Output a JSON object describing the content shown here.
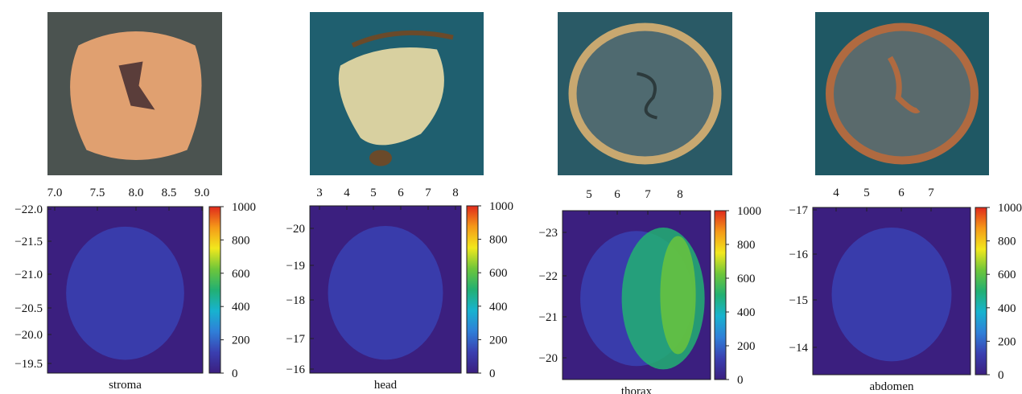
{
  "colormap_colors": [
    "#3b1f7f",
    "#3a3fb0",
    "#2f7fd8",
    "#17b3cf",
    "#22b072",
    "#6ec63a",
    "#f2e81d",
    "#f59a18",
    "#e02a1c"
  ],
  "chart_data": [
    {
      "type": "heatmap",
      "xlabel": "stroma",
      "x_ticks": [
        "7.0",
        "7.5",
        "8.0",
        "8.5",
        "9.0"
      ],
      "y_ticks": [
        "−22.0",
        "−21.5",
        "−21.0",
        "−20.5",
        "−20.0",
        "−19.5"
      ],
      "colorbar_ticks": [
        "1000",
        "800",
        "600",
        "400",
        "200",
        "0"
      ],
      "clim": [
        0,
        1000
      ],
      "background_value": 60,
      "sample_value": 90,
      "photo_colors": {
        "background": "#4b5350",
        "sample": "#e0a070",
        "dark": "#5a3d3a"
      }
    },
    {
      "type": "heatmap",
      "xlabel": "head",
      "x_ticks": [
        "3",
        "4",
        "5",
        "6",
        "7",
        "8"
      ],
      "y_ticks": [
        "−20",
        "−19",
        "−18",
        "−17",
        "−16"
      ],
      "colorbar_ticks": [
        "1000",
        "800",
        "600",
        "400",
        "200",
        "0"
      ],
      "clim": [
        0,
        1000
      ],
      "background_value": 60,
      "sample_value": 95,
      "photo_colors": {
        "background": "#1f5f6f",
        "sample": "#d8d0a0",
        "dark": "#6a4a2a"
      }
    },
    {
      "type": "heatmap",
      "xlabel": "thorax",
      "x_ticks": [
        "5",
        "6",
        "7",
        "8"
      ],
      "y_ticks": [
        "−23",
        "−22",
        "−21",
        "−20"
      ],
      "colorbar_ticks": [
        "1000",
        "800",
        "600",
        "400",
        "200",
        "0"
      ],
      "clim": [
        0,
        1000
      ],
      "background_value": 60,
      "sample_value": 150,
      "photo_colors": {
        "background": "#2a5a66",
        "sample": "#4f6a70",
        "dark": "#c8a870"
      }
    },
    {
      "type": "heatmap",
      "xlabel": "abdomen",
      "x_ticks": [
        "4",
        "5",
        "6",
        "7"
      ],
      "y_ticks": [
        "−17",
        "−16",
        "−15",
        "−14"
      ],
      "colorbar_ticks": [
        "1000",
        "800",
        "600",
        "400",
        "200",
        "0"
      ],
      "clim": [
        0,
        1000
      ],
      "background_value": 60,
      "sample_value": 90,
      "photo_colors": {
        "background": "#1f5864",
        "sample": "#5a6a6c",
        "dark": "#b06a40"
      }
    }
  ]
}
